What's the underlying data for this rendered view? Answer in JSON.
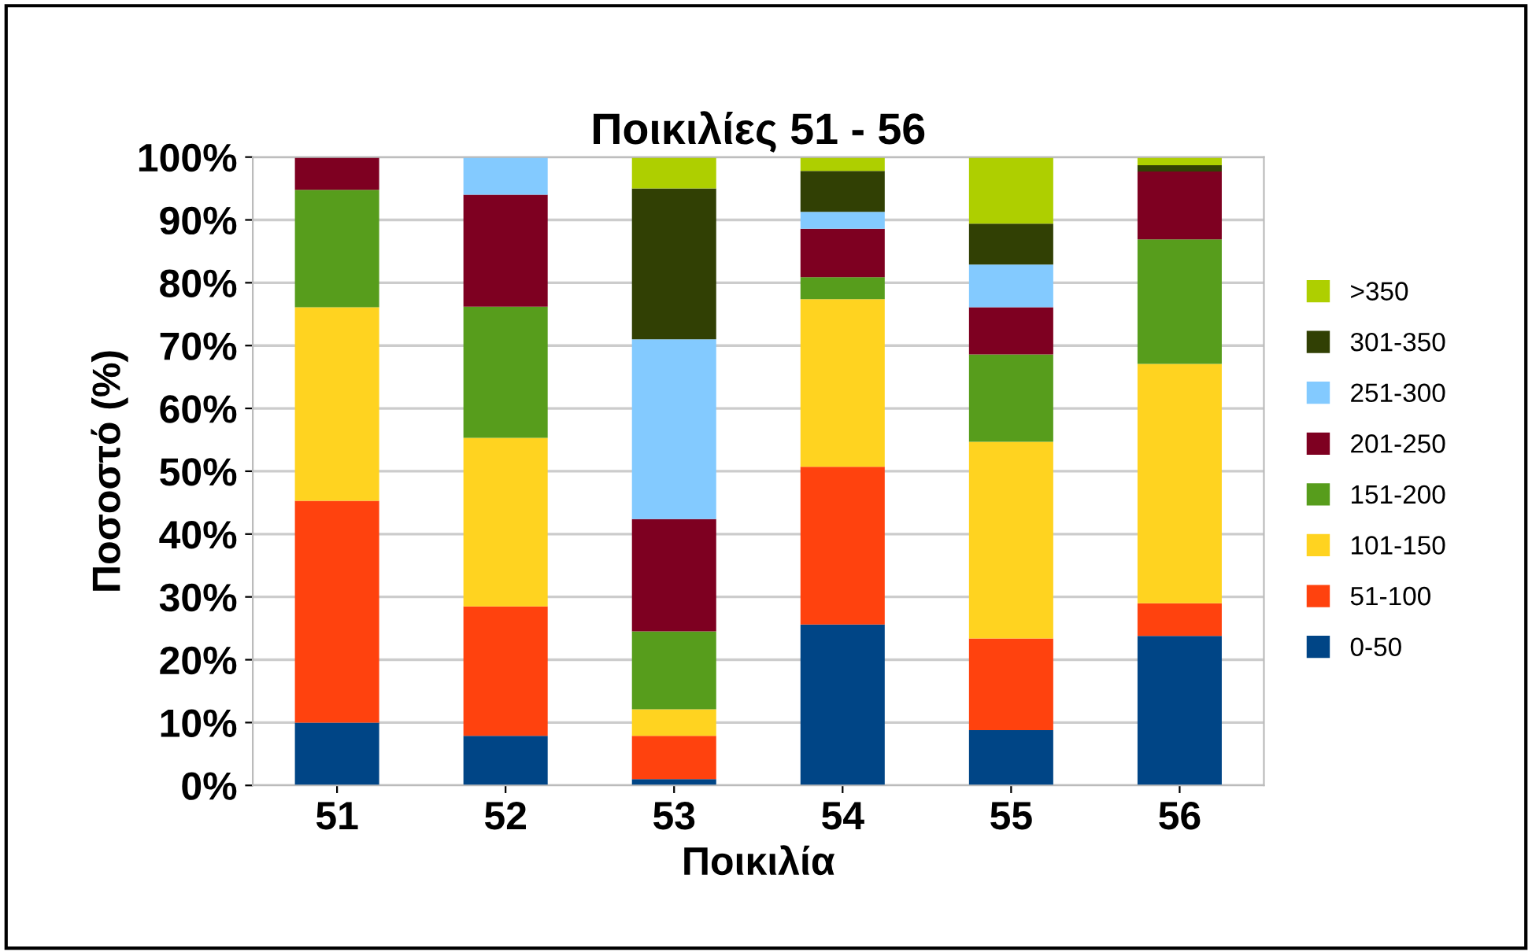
{
  "chart_data": {
    "type": "bar",
    "stacked": true,
    "title": "Ποικιλίες 51 - 56",
    "xlabel": "Ποικιλία",
    "ylabel": "Ποσοστό (%)",
    "categories": [
      "51",
      "52",
      "53",
      "54",
      "55",
      "56"
    ],
    "series": [
      {
        "name": "0-50",
        "color": "#004586",
        "values": [
          10.0,
          7.9,
          1.0,
          25.6,
          8.8,
          23.8
        ]
      },
      {
        "name": "51-100",
        "color": "#ff420e",
        "values": [
          35.3,
          20.6,
          6.9,
          25.1,
          14.6,
          5.2
        ]
      },
      {
        "name": "101-150",
        "color": "#ffd320",
        "values": [
          30.8,
          26.8,
          4.2,
          26.7,
          31.3,
          38.1
        ]
      },
      {
        "name": "151-200",
        "color": "#579d1c",
        "values": [
          18.7,
          20.9,
          12.4,
          3.5,
          13.9,
          19.8
        ]
      },
      {
        "name": "201-250",
        "color": "#7e0021",
        "values": [
          5.2,
          17.8,
          17.9,
          7.7,
          7.5,
          10.8
        ]
      },
      {
        "name": "251-300",
        "color": "#83caff",
        "values": [
          0,
          6.0,
          28.6,
          2.7,
          6.8,
          0
        ]
      },
      {
        "name": "301-350",
        "color": "#314004",
        "values": [
          0,
          0,
          24.0,
          6.5,
          6.5,
          1.0
        ]
      },
      {
        "name": ">350",
        "color": "#aecf00",
        "values": [
          0,
          0,
          5.0,
          2.2,
          10.6,
          1.3
        ]
      }
    ],
    "ylim": [
      0,
      100
    ],
    "yticks": [
      {
        "value": 0,
        "label": "0%"
      },
      {
        "value": 10,
        "label": "10%"
      },
      {
        "value": 20,
        "label": "20%"
      },
      {
        "value": 30,
        "label": "30%"
      },
      {
        "value": 40,
        "label": "40%"
      },
      {
        "value": 50,
        "label": "50%"
      },
      {
        "value": 60,
        "label": "60%"
      },
      {
        "value": 70,
        "label": "70%"
      },
      {
        "value": 80,
        "label": "80%"
      },
      {
        "value": 90,
        "label": "90%"
      },
      {
        "value": 100,
        "label": "100%"
      }
    ],
    "grid": "y",
    "legend": "right"
  }
}
